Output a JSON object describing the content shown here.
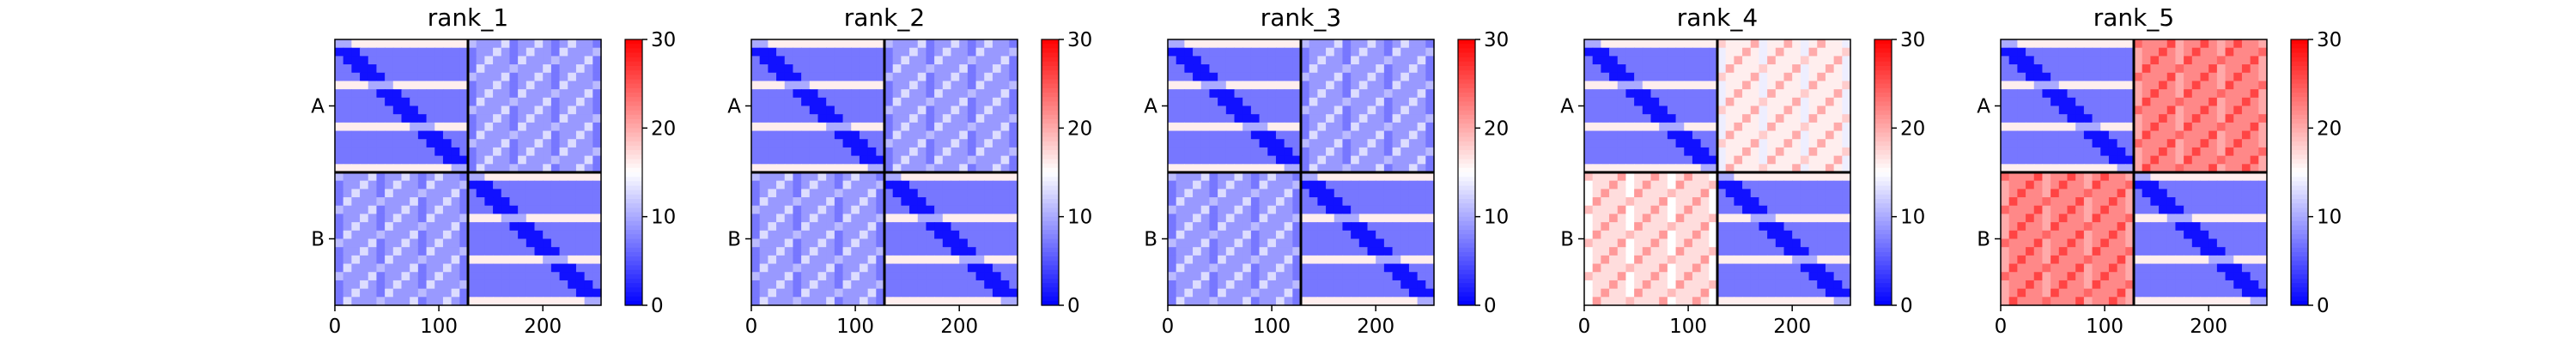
{
  "chart_data": [
    {
      "type": "heatmap",
      "title": "rank_1",
      "blocks": [
        "A",
        "B"
      ],
      "block_boundary": 128,
      "xlim": [
        0,
        256
      ],
      "xticks": [
        0,
        100,
        200
      ],
      "colorbar": {
        "ticks": [
          0,
          10,
          20,
          30
        ],
        "range": [
          0,
          30
        ],
        "colormap": "bwr"
      },
      "block_levels": {
        "AA": 7,
        "AB": 9,
        "BA": 9,
        "BB": 7
      }
    },
    {
      "type": "heatmap",
      "title": "rank_2",
      "blocks": [
        "A",
        "B"
      ],
      "block_boundary": 128,
      "xlim": [
        0,
        256
      ],
      "xticks": [
        0,
        100,
        200
      ],
      "colorbar": {
        "ticks": [
          0,
          10,
          20,
          30
        ],
        "range": [
          0,
          30
        ],
        "colormap": "bwr"
      },
      "block_levels": {
        "AA": 7,
        "AB": 9,
        "BA": 9,
        "BB": 7
      }
    },
    {
      "type": "heatmap",
      "title": "rank_3",
      "blocks": [
        "A",
        "B"
      ],
      "block_boundary": 128,
      "xlim": [
        0,
        256
      ],
      "xticks": [
        0,
        100,
        200
      ],
      "colorbar": {
        "ticks": [
          0,
          10,
          20,
          30
        ],
        "range": [
          0,
          30
        ],
        "colormap": "bwr"
      },
      "block_levels": {
        "AA": 7,
        "AB": 9,
        "BA": 9,
        "BB": 7
      }
    },
    {
      "type": "heatmap",
      "title": "rank_4",
      "blocks": [
        "A",
        "B"
      ],
      "block_boundary": 128,
      "xlim": [
        0,
        256
      ],
      "xticks": [
        0,
        100,
        200
      ],
      "colorbar": {
        "ticks": [
          0,
          10,
          20,
          30
        ],
        "range": [
          0,
          30
        ],
        "colormap": "bwr"
      },
      "block_levels": {
        "AA": 7,
        "AB": 16,
        "BA": 17,
        "BB": 7
      }
    },
    {
      "type": "heatmap",
      "title": "rank_5",
      "blocks": [
        "A",
        "B"
      ],
      "block_boundary": 128,
      "xlim": [
        0,
        256
      ],
      "xticks": [
        0,
        100,
        200
      ],
      "colorbar": {
        "ticks": [
          0,
          10,
          20,
          30
        ],
        "range": [
          0,
          30
        ],
        "colormap": "bwr"
      },
      "block_levels": {
        "AA": 7,
        "AB": 22,
        "BA": 22,
        "BB": 7
      }
    }
  ]
}
